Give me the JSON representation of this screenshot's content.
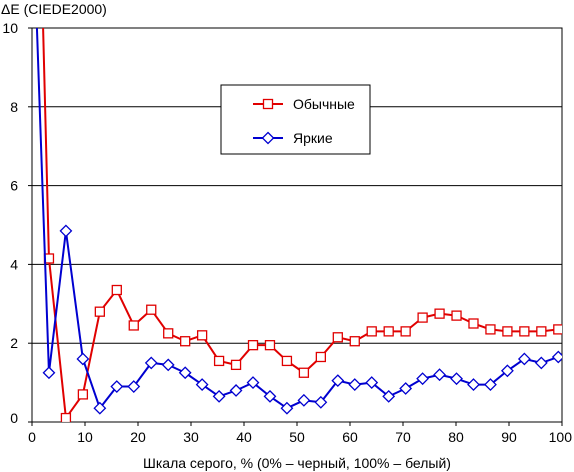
{
  "chart_data": {
    "type": "line",
    "ylabel": "ΔE (CIEDE2000)",
    "xlabel": "Шкала серого, % (0% – черный, 100% – белый)",
    "xlim": [
      0,
      100
    ],
    "ylim": [
      0,
      10
    ],
    "xticks": [
      0,
      10,
      20,
      30,
      40,
      50,
      60,
      70,
      80,
      90,
      100
    ],
    "yticks": [
      0,
      2,
      4,
      6,
      8,
      10
    ],
    "grid": "horizontal",
    "legend_position": "upper-center",
    "series": [
      {
        "name": "Обычные",
        "color": "#e00000",
        "marker": "square",
        "x": [
          2.0,
          3.2,
          6.4,
          9.6,
          12.8,
          16.0,
          19.2,
          22.5,
          25.7,
          28.9,
          32.1,
          35.3,
          38.5,
          41.7,
          44.9,
          48.1,
          51.3,
          54.5,
          57.7,
          60.9,
          64.1,
          67.3,
          70.5,
          73.7,
          76.9,
          80.1,
          83.3,
          86.5,
          89.7,
          92.9,
          96.1,
          99.3
        ],
        "y": [
          10.5,
          4.15,
          0.1,
          0.7,
          2.8,
          3.35,
          2.45,
          2.85,
          2.25,
          2.05,
          2.2,
          1.55,
          1.45,
          1.95,
          1.95,
          1.55,
          1.25,
          1.65,
          2.15,
          2.05,
          2.3,
          2.3,
          2.3,
          2.65,
          2.75,
          2.7,
          2.5,
          2.35,
          2.3,
          2.3,
          2.3,
          2.35
        ]
      },
      {
        "name": "Яркие",
        "color": "#0000d0",
        "marker": "diamond",
        "x": [
          0.8,
          3.2,
          6.4,
          9.6,
          12.8,
          16.0,
          19.2,
          22.5,
          25.7,
          28.9,
          32.1,
          35.3,
          38.5,
          41.7,
          44.9,
          48.1,
          51.3,
          54.5,
          57.7,
          60.9,
          64.1,
          67.3,
          70.5,
          73.7,
          76.9,
          80.1,
          83.3,
          86.5,
          89.7,
          92.9,
          96.1,
          99.3
        ],
        "y": [
          10.5,
          1.25,
          4.85,
          1.6,
          0.35,
          0.9,
          0.9,
          1.5,
          1.45,
          1.25,
          0.95,
          0.65,
          0.8,
          1.0,
          0.65,
          0.35,
          0.55,
          0.5,
          1.05,
          0.95,
          1.0,
          0.65,
          0.85,
          1.1,
          1.2,
          1.1,
          0.95,
          0.95,
          1.3,
          1.6,
          1.5,
          1.65
        ]
      }
    ]
  }
}
